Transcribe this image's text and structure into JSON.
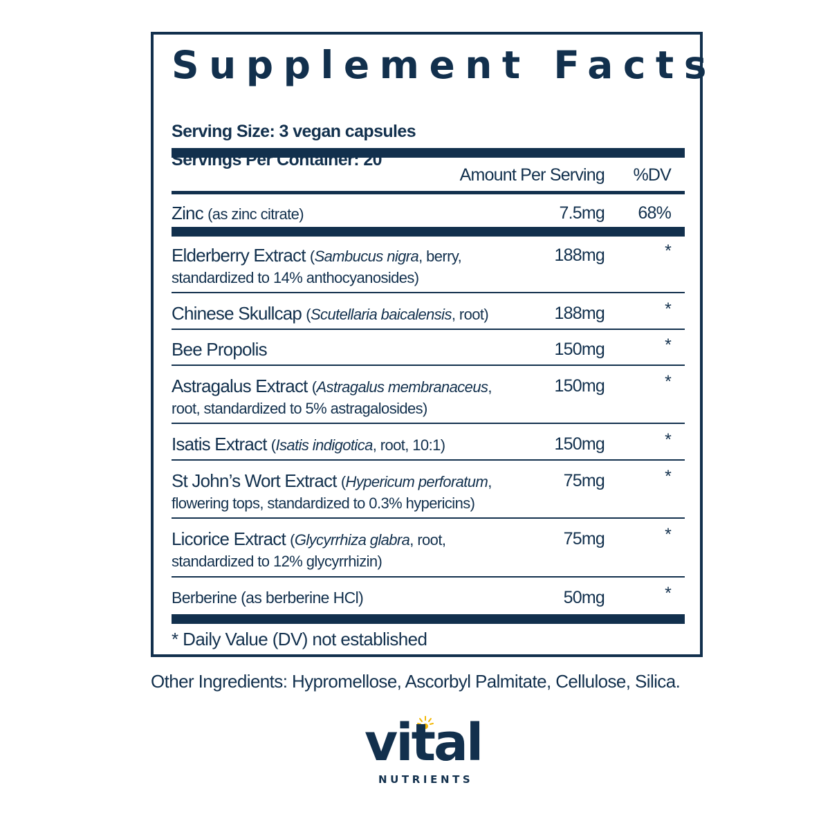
{
  "title": "Supplement Facts",
  "serving_size": "Serving Size: 3 vegan capsules",
  "servings_per_container": "Servings Per Container: 20",
  "header": {
    "amount": "Amount Per Serving",
    "dv": "%DV"
  },
  "rows": [
    {
      "name": "Zinc",
      "detail": "(as zinc citrate)",
      "amount": "7.5mg",
      "dv": "68%"
    },
    {
      "name": "Elderberry Extract",
      "detail_pre": "(",
      "latin": "Sambucus nigra",
      "detail_post": ", berry,",
      "line2": "standardized to 14% anthocyanosides)",
      "amount": "188mg",
      "dv": "*"
    },
    {
      "name": "Chinese Skullcap",
      "detail_pre": "(",
      "latin": "Scutellaria baicalensis",
      "detail_post": ", root)",
      "amount": "188mg",
      "dv": "*"
    },
    {
      "name": "Bee Propolis",
      "amount": "150mg",
      "dv": "*"
    },
    {
      "name": "Astragalus Extract",
      "detail_pre": "(",
      "latin": "Astragalus membranaceus",
      "detail_post": ",",
      "line2": "root, standardized to 5% astragalosides)",
      "amount": "150mg",
      "dv": "*"
    },
    {
      "name": "Isatis Extract",
      "detail_pre": "(",
      "latin": "Isatis indigotica",
      "detail_post": ", root, 10:1)",
      "amount": "150mg",
      "dv": "*"
    },
    {
      "name": "St John’s Wort Extract",
      "detail_pre": "(",
      "latin": "Hypericum perforatum",
      "detail_post": ",",
      "line2": "flowering tops, standardized to 0.3% hypericins)",
      "amount": "75mg",
      "dv": "*"
    },
    {
      "name": "Licorice Extract",
      "detail_pre": "(",
      "latin": "Glycyrrhiza glabra",
      "detail_post": ", root,",
      "line2": "standardized to 12% glycyrrhizin)",
      "amount": "75mg",
      "dv": "*"
    },
    {
      "name": "Berberine (as berberine HCl)",
      "amount": "50mg",
      "dv": "*"
    }
  ],
  "footnote": "* Daily Value (DV) not established",
  "other_ingredients": "Other Ingredients: Hypromellose, Ascorbyl Palmitate, Cellulose, Silica.",
  "logo": {
    "word": "vital",
    "sub": "NUTRIENTS",
    "icon": "sun-icon",
    "accent": "#f2b705"
  },
  "colors": {
    "ink": "#12304d"
  }
}
